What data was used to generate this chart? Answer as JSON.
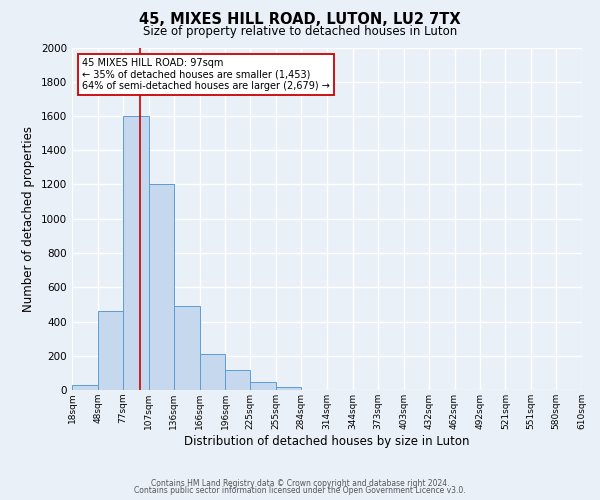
{
  "title": "45, MIXES HILL ROAD, LUTON, LU2 7TX",
  "subtitle": "Size of property relative to detached houses in Luton",
  "xlabel": "Distribution of detached houses by size in Luton",
  "ylabel": "Number of detached properties",
  "bin_labels": [
    "18sqm",
    "48sqm",
    "77sqm",
    "107sqm",
    "136sqm",
    "166sqm",
    "196sqm",
    "225sqm",
    "255sqm",
    "284sqm",
    "314sqm",
    "344sqm",
    "373sqm",
    "403sqm",
    "432sqm",
    "462sqm",
    "492sqm",
    "521sqm",
    "551sqm",
    "580sqm",
    "610sqm"
  ],
  "bar_values": [
    30,
    460,
    1600,
    1200,
    490,
    210,
    115,
    45,
    20,
    0,
    0,
    0,
    0,
    0,
    0,
    0,
    0,
    0,
    0,
    0
  ],
  "bin_edges": [
    18,
    48,
    77,
    107,
    136,
    166,
    196,
    225,
    255,
    284,
    314,
    344,
    373,
    403,
    432,
    462,
    492,
    521,
    551,
    580,
    610
  ],
  "bar_color": "#c5d8ed",
  "bar_edge_color": "#5b9bd5",
  "background_color": "#eaf0f8",
  "grid_color": "#ffffff",
  "property_line_x": 97,
  "property_line_color": "#cc0000",
  "annotation_line1": "45 MIXES HILL ROAD: 97sqm",
  "annotation_line2": "← 35% of detached houses are smaller (1,453)",
  "annotation_line3": "64% of semi-detached houses are larger (2,679) →",
  "annotation_box_color": "#ffffff",
  "annotation_box_edge_color": "#cc0000",
  "ylim": [
    0,
    2000
  ],
  "yticks": [
    0,
    200,
    400,
    600,
    800,
    1000,
    1200,
    1400,
    1600,
    1800,
    2000
  ],
  "footer_line1": "Contains HM Land Registry data © Crown copyright and database right 2024.",
  "footer_line2": "Contains public sector information licensed under the Open Government Licence v3.0."
}
